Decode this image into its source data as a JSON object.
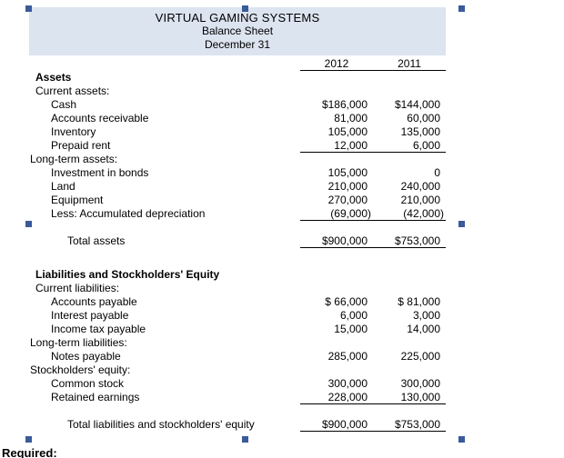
{
  "colors": {
    "band_bg": "#dce4f0",
    "handle": "#3a5a9a",
    "rule": "#000000"
  },
  "header": {
    "title": "VIRTUAL GAMING SYSTEMS",
    "subtitle1": "Balance Sheet",
    "subtitle2": "December 31"
  },
  "columns": {
    "c1": "2012",
    "c2": "2011"
  },
  "rows": [
    {
      "label": "Assets",
      "bold": true,
      "indent": 1
    },
    {
      "label": "Current assets:",
      "indent": 1
    },
    {
      "label": "Cash",
      "indent": 2,
      "v1": "$186,000",
      "v2": "$144,000"
    },
    {
      "label": "Accounts receivable",
      "indent": 2,
      "v1": "81,000",
      "v2": "60,000"
    },
    {
      "label": "Inventory",
      "indent": 2,
      "v1": "105,000",
      "v2": "135,000"
    },
    {
      "label": "Prepaid rent",
      "indent": 2,
      "v1": "12,000",
      "v2": "6,000",
      "underline": true
    },
    {
      "label": "Long-term assets:",
      "indent": 0
    },
    {
      "label": "Investment in bonds",
      "indent": 2,
      "v1": "105,000",
      "v2": "0"
    },
    {
      "label": "Land",
      "indent": 2,
      "v1": "210,000",
      "v2": "240,000"
    },
    {
      "label": "Equipment",
      "indent": 2,
      "v1": "270,000",
      "v2": "210,000"
    },
    {
      "label": "Less: Accumulated depreciation",
      "indent": 2,
      "v1": "(69,000)",
      "v2": "(42,000)",
      "underline": true
    },
    {
      "spacer": true,
      "h": 8
    },
    {
      "label": "Total assets",
      "indent": 3,
      "v1": "$900,000",
      "v2": "$753,000",
      "underline": true
    },
    {
      "spacer": true,
      "h": 22
    },
    {
      "label": "Liabilities and Stockholders' Equity",
      "bold": true,
      "indent": 1
    },
    {
      "label": "Current liabilities:",
      "indent": 1
    },
    {
      "label": "Accounts payable",
      "indent": 2,
      "v1": "$ 66,000",
      "v2": "$ 81,000"
    },
    {
      "label": "Interest payable",
      "indent": 2,
      "v1": "6,000",
      "v2": "3,000"
    },
    {
      "label": "Income tax payable",
      "indent": 2,
      "v1": "15,000",
      "v2": "14,000"
    },
    {
      "label": "Long-term liabilities:",
      "indent": 0
    },
    {
      "label": "Notes payable",
      "indent": 2,
      "v1": "285,000",
      "v2": "225,000"
    },
    {
      "label": "Stockholders' equity:",
      "indent": 0
    },
    {
      "label": "Common stock",
      "indent": 2,
      "v1": "300,000",
      "v2": "300,000"
    },
    {
      "label": "Retained earnings",
      "indent": 2,
      "v1": "228,000",
      "v2": "130,000",
      "underline": true
    },
    {
      "spacer": true,
      "h": 10
    },
    {
      "label": "Total liabilities and stockholders' equity",
      "indent": 3,
      "v1": "$900,000",
      "v2": "$753,000",
      "underline": true
    }
  ],
  "footer": {
    "required": "Required:"
  }
}
